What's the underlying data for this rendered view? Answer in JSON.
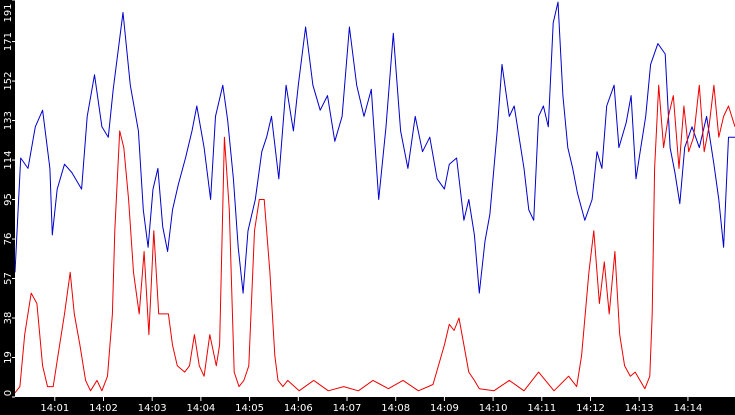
{
  "chart_data": {
    "type": "line",
    "grid": false,
    "ylim": [
      0,
      191
    ],
    "y_ticks": [
      0,
      19,
      38,
      57,
      76,
      95,
      114,
      133,
      152,
      171,
      191
    ],
    "y_tick_labels": [
      "0",
      "19",
      "38",
      "57",
      "76",
      "95",
      "114",
      "133",
      "152",
      "171",
      "191"
    ],
    "x_range": [
      "14:00:11",
      "14:14:58"
    ],
    "x_ticks": [
      "14:01",
      "14:02",
      "14:03",
      "14:04",
      "14:05",
      "14:06",
      "14:07",
      "14:08",
      "14:09",
      "14:10",
      "14:11",
      "14:12",
      "14:13",
      "14:14"
    ],
    "x_tick_labels": [
      "14:01",
      "14:02",
      "14:03",
      "14:04",
      "14:05",
      "14:06",
      "14:07",
      "14:08",
      "14:09",
      "14:10",
      "14:11",
      "14:12",
      "14:13",
      "14:14"
    ],
    "series": [
      {
        "color": "#0000cc",
        "points": [
          [
            "14:00:11",
            60
          ],
          [
            "14:00:18",
            115
          ],
          [
            "14:00:27",
            110
          ],
          [
            "14:00:36",
            130
          ],
          [
            "14:00:45",
            138
          ],
          [
            "14:00:54",
            110
          ],
          [
            "14:00:57",
            78
          ],
          [
            "14:01:03",
            100
          ],
          [
            "14:01:12",
            112
          ],
          [
            "14:01:21",
            108
          ],
          [
            "14:01:33",
            100
          ],
          [
            "14:01:40",
            135
          ],
          [
            "14:01:49",
            155
          ],
          [
            "14:01:58",
            130
          ],
          [
            "14:02:06",
            125
          ],
          [
            "14:02:12",
            148
          ],
          [
            "14:02:24",
            185
          ],
          [
            "14:02:33",
            150
          ],
          [
            "14:02:43",
            128
          ],
          [
            "14:02:49",
            90
          ],
          [
            "14:02:55",
            72
          ],
          [
            "14:03:01",
            100
          ],
          [
            "14:03:07",
            110
          ],
          [
            "14:03:13",
            82
          ],
          [
            "14:03:19",
            70
          ],
          [
            "14:03:25",
            90
          ],
          [
            "14:03:32",
            102
          ],
          [
            "14:03:41",
            115
          ],
          [
            "14:03:49",
            128
          ],
          [
            "14:03:55",
            140
          ],
          [
            "14:04:04",
            120
          ],
          [
            "14:04:12",
            95
          ],
          [
            "14:04:18",
            135
          ],
          [
            "14:04:27",
            150
          ],
          [
            "14:04:33",
            133
          ],
          [
            "14:04:40",
            105
          ],
          [
            "14:04:46",
            72
          ],
          [
            "14:04:52",
            50
          ],
          [
            "14:04:58",
            80
          ],
          [
            "14:05:07",
            95
          ],
          [
            "14:05:15",
            118
          ],
          [
            "14:05:21",
            125
          ],
          [
            "14:05:27",
            135
          ],
          [
            "14:05:36",
            105
          ],
          [
            "14:05:45",
            150
          ],
          [
            "14:05:54",
            128
          ],
          [
            "14:06:00",
            150
          ],
          [
            "14:06:09",
            178
          ],
          [
            "14:06:18",
            150
          ],
          [
            "14:06:27",
            138
          ],
          [
            "14:06:36",
            145
          ],
          [
            "14:06:45",
            123
          ],
          [
            "14:06:54",
            135
          ],
          [
            "14:07:03",
            178
          ],
          [
            "14:07:12",
            150
          ],
          [
            "14:07:21",
            135
          ],
          [
            "14:07:30",
            148
          ],
          [
            "14:07:39",
            95
          ],
          [
            "14:07:48",
            130
          ],
          [
            "14:07:57",
            175
          ],
          [
            "14:08:06",
            128
          ],
          [
            "14:08:15",
            110
          ],
          [
            "14:08:24",
            135
          ],
          [
            "14:08:33",
            118
          ],
          [
            "14:08:42",
            125
          ],
          [
            "14:08:51",
            105
          ],
          [
            "14:09:00",
            100
          ],
          [
            "14:09:06",
            112
          ],
          [
            "14:09:15",
            115
          ],
          [
            "14:09:24",
            85
          ],
          [
            "14:09:30",
            95
          ],
          [
            "14:09:37",
            78
          ],
          [
            "14:09:43",
            50
          ],
          [
            "14:09:50",
            75
          ],
          [
            "14:09:56",
            88
          ],
          [
            "14:10:05",
            128
          ],
          [
            "14:10:11",
            160
          ],
          [
            "14:10:20",
            135
          ],
          [
            "14:10:26",
            140
          ],
          [
            "14:10:32",
            125
          ],
          [
            "14:10:38",
            110
          ],
          [
            "14:10:44",
            90
          ],
          [
            "14:10:50",
            85
          ],
          [
            "14:10:56",
            135
          ],
          [
            "14:11:02",
            140
          ],
          [
            "14:11:08",
            130
          ],
          [
            "14:11:14",
            180
          ],
          [
            "14:11:20",
            190
          ],
          [
            "14:11:26",
            145
          ],
          [
            "14:11:32",
            120
          ],
          [
            "14:11:38",
            110
          ],
          [
            "14:11:44",
            98
          ],
          [
            "14:11:53",
            85
          ],
          [
            "14:12:02",
            95
          ],
          [
            "14:12:08",
            118
          ],
          [
            "14:12:14",
            110
          ],
          [
            "14:12:20",
            140
          ],
          [
            "14:12:29",
            150
          ],
          [
            "14:12:35",
            120
          ],
          [
            "14:12:44",
            132
          ],
          [
            "14:12:50",
            145
          ],
          [
            "14:12:56",
            105
          ],
          [
            "14:13:02",
            120
          ],
          [
            "14:13:08",
            135
          ],
          [
            "14:13:14",
            160
          ],
          [
            "14:13:23",
            170
          ],
          [
            "14:13:32",
            165
          ],
          [
            "14:13:38",
            120
          ],
          [
            "14:13:44",
            108
          ],
          [
            "14:13:50",
            93
          ],
          [
            "14:13:56",
            120
          ],
          [
            "14:14:05",
            130
          ],
          [
            "14:14:14",
            120
          ],
          [
            "14:14:23",
            135
          ],
          [
            "14:14:32",
            112
          ],
          [
            "14:14:38",
            95
          ],
          [
            "14:14:44",
            72
          ],
          [
            "14:14:50",
            125
          ],
          [
            "14:14:58",
            125
          ]
        ]
      },
      {
        "color": "#ee0000",
        "points": [
          [
            "14:00:11",
            2
          ],
          [
            "14:00:17",
            5
          ],
          [
            "14:00:23",
            30
          ],
          [
            "14:00:31",
            50
          ],
          [
            "14:00:38",
            45
          ],
          [
            "14:00:45",
            15
          ],
          [
            "14:00:51",
            5
          ],
          [
            "14:00:58",
            5
          ],
          [
            "14:01:04",
            20
          ],
          [
            "14:01:12",
            40
          ],
          [
            "14:01:19",
            60
          ],
          [
            "14:01:24",
            40
          ],
          [
            "14:01:31",
            25
          ],
          [
            "14:01:38",
            8
          ],
          [
            "14:01:44",
            3
          ],
          [
            "14:01:52",
            8
          ],
          [
            "14:01:58",
            3
          ],
          [
            "14:02:05",
            10
          ],
          [
            "14:02:11",
            40
          ],
          [
            "14:02:14",
            80
          ],
          [
            "14:02:20",
            128
          ],
          [
            "14:02:25",
            120
          ],
          [
            "14:02:31",
            95
          ],
          [
            "14:02:37",
            60
          ],
          [
            "14:02:44",
            40
          ],
          [
            "14:02:50",
            70
          ],
          [
            "14:02:56",
            30
          ],
          [
            "14:03:02",
            80
          ],
          [
            "14:03:08",
            40
          ],
          [
            "14:03:14",
            40
          ],
          [
            "14:03:20",
            40
          ],
          [
            "14:03:25",
            25
          ],
          [
            "14:03:31",
            15
          ],
          [
            "14:03:40",
            12
          ],
          [
            "14:03:46",
            15
          ],
          [
            "14:03:52",
            30
          ],
          [
            "14:03:58",
            15
          ],
          [
            "14:04:04",
            10
          ],
          [
            "14:04:11",
            30
          ],
          [
            "14:04:19",
            15
          ],
          [
            "14:04:23",
            25
          ],
          [
            "14:04:29",
            125
          ],
          [
            "14:04:35",
            90
          ],
          [
            "14:04:41",
            12
          ],
          [
            "14:04:47",
            5
          ],
          [
            "14:04:53",
            8
          ],
          [
            "14:04:59",
            15
          ],
          [
            "14:05:06",
            80
          ],
          [
            "14:05:12",
            95
          ],
          [
            "14:05:18",
            95
          ],
          [
            "14:05:25",
            60
          ],
          [
            "14:05:31",
            20
          ],
          [
            "14:05:35",
            8
          ],
          [
            "14:05:41",
            5
          ],
          [
            "14:05:47",
            8
          ],
          [
            "14:06:01",
            3
          ],
          [
            "14:06:19",
            8
          ],
          [
            "14:06:37",
            3
          ],
          [
            "14:06:56",
            5
          ],
          [
            "14:07:14",
            3
          ],
          [
            "14:07:32",
            8
          ],
          [
            "14:07:51",
            4
          ],
          [
            "14:08:09",
            8
          ],
          [
            "14:08:28",
            3
          ],
          [
            "14:08:46",
            6
          ],
          [
            "14:09:00",
            25
          ],
          [
            "14:09:06",
            35
          ],
          [
            "14:09:12",
            32
          ],
          [
            "14:09:18",
            38
          ],
          [
            "14:09:24",
            25
          ],
          [
            "14:09:30",
            12
          ],
          [
            "14:09:37",
            8
          ],
          [
            "14:09:43",
            4
          ],
          [
            "14:10:01",
            3
          ],
          [
            "14:10:20",
            8
          ],
          [
            "14:10:38",
            3
          ],
          [
            "14:10:56",
            12
          ],
          [
            "14:11:15",
            3
          ],
          [
            "14:11:33",
            10
          ],
          [
            "14:11:43",
            5
          ],
          [
            "14:11:49",
            20
          ],
          [
            "14:11:58",
            60
          ],
          [
            "14:12:04",
            80
          ],
          [
            "14:12:11",
            45
          ],
          [
            "14:12:17",
            65
          ],
          [
            "14:12:23",
            40
          ],
          [
            "14:12:30",
            70
          ],
          [
            "14:12:36",
            30
          ],
          [
            "14:12:42",
            15
          ],
          [
            "14:12:49",
            10
          ],
          [
            "14:12:55",
            12
          ],
          [
            "14:13:01",
            8
          ],
          [
            "14:13:07",
            4
          ],
          [
            "14:13:13",
            10
          ],
          [
            "14:13:16",
            40
          ],
          [
            "14:13:19",
            110
          ],
          [
            "14:13:24",
            150
          ],
          [
            "14:13:30",
            120
          ],
          [
            "14:13:36",
            135
          ],
          [
            "14:13:42",
            145
          ],
          [
            "14:13:49",
            110
          ],
          [
            "14:13:55",
            140
          ],
          [
            "14:14:01",
            118
          ],
          [
            "14:14:07",
            125
          ],
          [
            "14:14:14",
            150
          ],
          [
            "14:14:20",
            118
          ],
          [
            "14:14:26",
            130
          ],
          [
            "14:14:32",
            150
          ],
          [
            "14:14:38",
            125
          ],
          [
            "14:14:44",
            135
          ],
          [
            "14:14:50",
            140
          ],
          [
            "14:14:58",
            130
          ]
        ]
      }
    ]
  }
}
